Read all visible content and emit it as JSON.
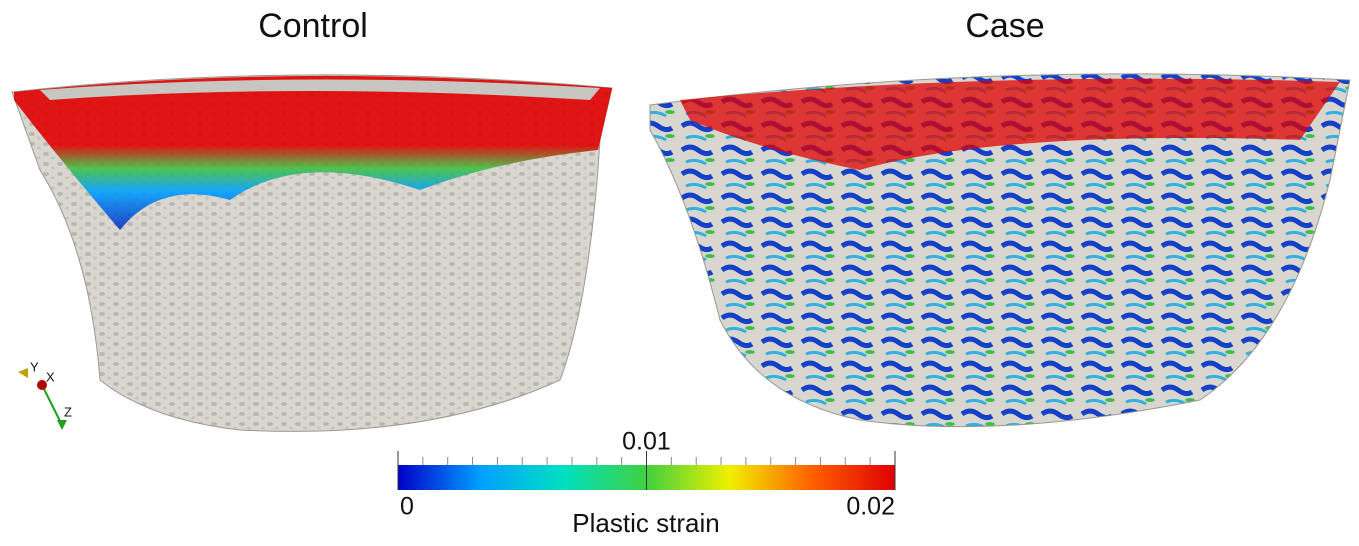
{
  "panels": [
    {
      "title": "Control"
    },
    {
      "title": "Case"
    }
  ],
  "colorbar": {
    "label": "Plastic strain",
    "lim": [
      0,
      0.02
    ],
    "ticks": [
      0,
      0.01,
      0.02
    ],
    "colors": [
      "#0000c8",
      "#00a0ff",
      "#00e0c0",
      "#40d040",
      "#f0f000",
      "#ff6000",
      "#e00000"
    ]
  },
  "axes_triad": {
    "labels": [
      "Y",
      "X",
      "Z"
    ]
  }
}
